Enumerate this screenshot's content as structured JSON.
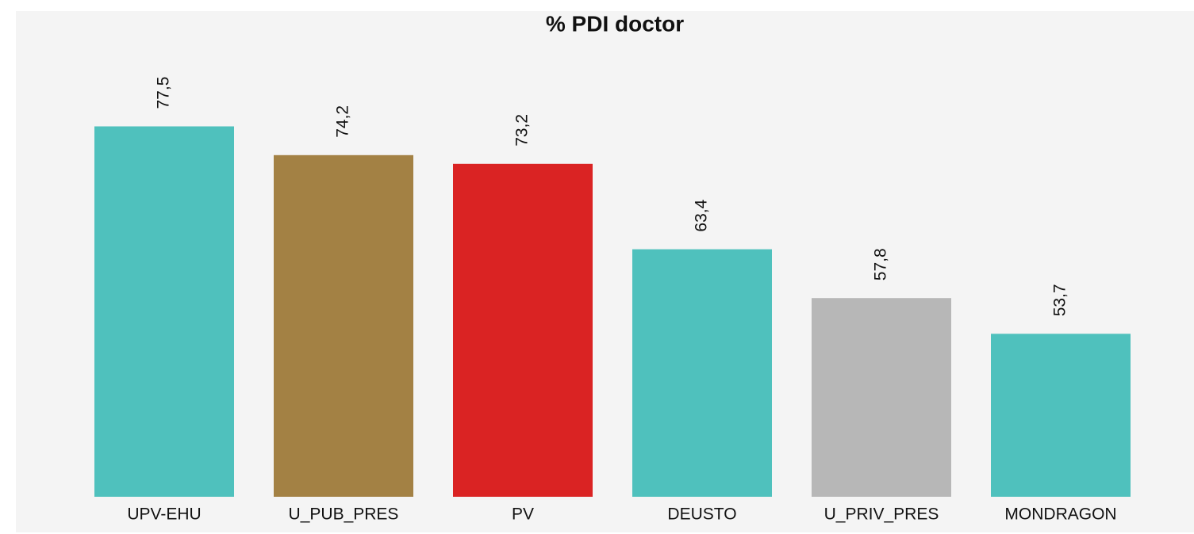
{
  "chart_data": {
    "type": "bar",
    "title": "% PDI doctor",
    "categories": [
      "UPV-EHU",
      "U_PUB_PRES",
      "PV",
      "DEUSTO",
      "U_PRIV_PRES",
      "MONDRAGON"
    ],
    "values": [
      77.5,
      74.2,
      73.2,
      63.4,
      57.8,
      53.7
    ],
    "value_labels": [
      "77,5",
      "74,2",
      "73,2",
      "63,4",
      "57,8",
      "53,7"
    ],
    "colors": [
      "#4fc1bd",
      "#a38144",
      "#da2323",
      "#4fc1bd",
      "#b7b7b7",
      "#4fc1bd"
    ],
    "ylim": [
      35,
      87
    ]
  }
}
